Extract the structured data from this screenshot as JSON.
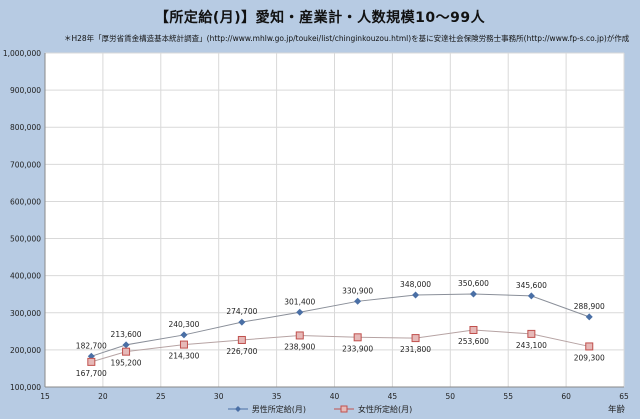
{
  "title": "【所定給(月)】愛知・産業計・人数規模10～99人",
  "subtitle": "＊H28年「厚労省賃金構造基本統計調査」(http://www.mhlw.go.jp/toukei/list/chinginkouzou.html)を基に安達社会保険労務士事務所(http://www.fp-s.co.jp)が作成",
  "x_unit": "年齢",
  "colors": {
    "male": "#4a6fa5",
    "female": "#c0504d",
    "female_fill": "#e6b9b8",
    "grid": "#d9d9d9",
    "axis": "#888888"
  },
  "chart_data": {
    "type": "line",
    "xlim": [
      15,
      65
    ],
    "x_ticks": [
      15,
      20,
      25,
      30,
      35,
      40,
      45,
      50,
      55,
      60,
      65
    ],
    "ylim": [
      100000,
      1000000
    ],
    "y_ticks": [
      "100,000",
      "200,000",
      "300,000",
      "400,000",
      "500,000",
      "600,000",
      "700,000",
      "800,000",
      "900,000",
      "1,000,000"
    ],
    "grid": true,
    "legend_position": "bottom",
    "series": [
      {
        "name": "男性所定給(月)",
        "x": [
          19,
          22,
          27,
          32,
          37,
          42,
          47,
          52,
          57,
          62
        ],
        "values": [
          182700,
          213600,
          240300,
          274700,
          301400,
          330900,
          348000,
          350600,
          345600,
          288900
        ],
        "labels": [
          "182,700",
          "213,600",
          "240,300",
          "274,700",
          "301,400",
          "330,900",
          "348,000",
          "350,600",
          "345,600",
          "288,900"
        ]
      },
      {
        "name": "女性所定給(月)",
        "x": [
          19,
          22,
          27,
          32,
          37,
          42,
          47,
          52,
          57,
          62
        ],
        "values": [
          167700,
          195200,
          214300,
          226700,
          238900,
          233900,
          231800,
          253600,
          243100,
          209300
        ],
        "labels": [
          "167,700",
          "195,200",
          "214,300",
          "226,700",
          "238,900",
          "233,900",
          "231,800",
          "253,600",
          "243,100",
          "209,300"
        ]
      }
    ]
  }
}
